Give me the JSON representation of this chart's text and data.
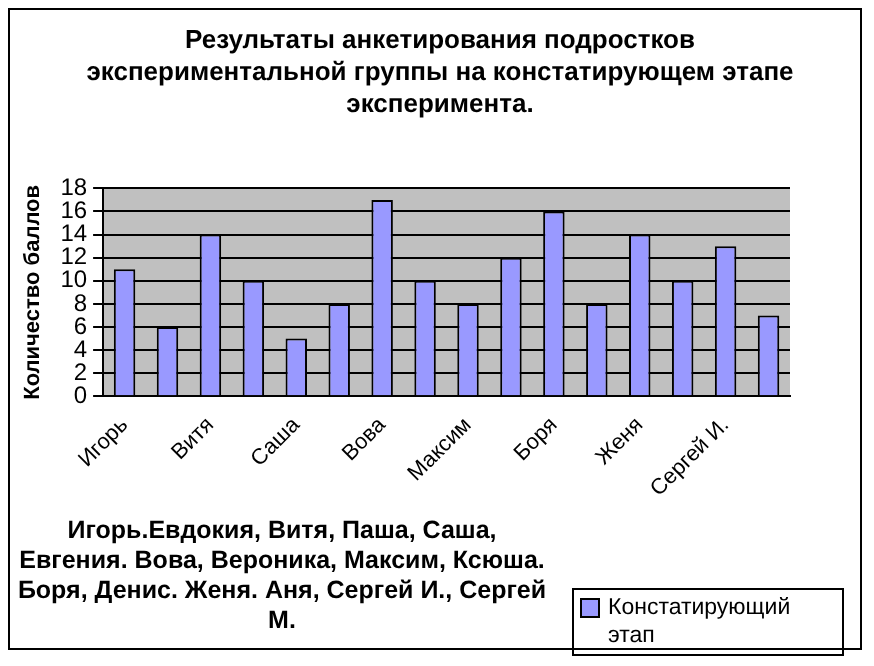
{
  "chart_data": {
    "type": "bar",
    "title": "Результаты анкетирования подростков экспериментальной группы на констатирующем этапе эксперимента.",
    "xlabel": "Игорь.Евдокия, Витя, Паша, Саша, Евгения. Вова, Вероника, Максим, Ксюша. Боря, Денис. Женя. Аня, Сергей И., Сергей М.",
    "ylabel": "Количество баллов",
    "categories": [
      "Игорь",
      null,
      "Витя",
      null,
      "Саша",
      null,
      "Вова",
      null,
      "Максим",
      null,
      "Боря",
      null,
      "Женя",
      null,
      "Сергей И.",
      null
    ],
    "series": [
      {
        "name": "Констатирующий этап",
        "color": "#9999ff",
        "values": [
          11,
          6,
          14,
          10,
          5,
          8,
          17,
          10,
          8,
          12,
          16,
          8,
          14,
          10,
          13,
          7
        ]
      }
    ],
    "ylim": [
      0,
      18
    ],
    "yticks": [
      0,
      2,
      4,
      6,
      8,
      10,
      12,
      14,
      16,
      18
    ],
    "grid": "y",
    "legend": "bottom right"
  }
}
